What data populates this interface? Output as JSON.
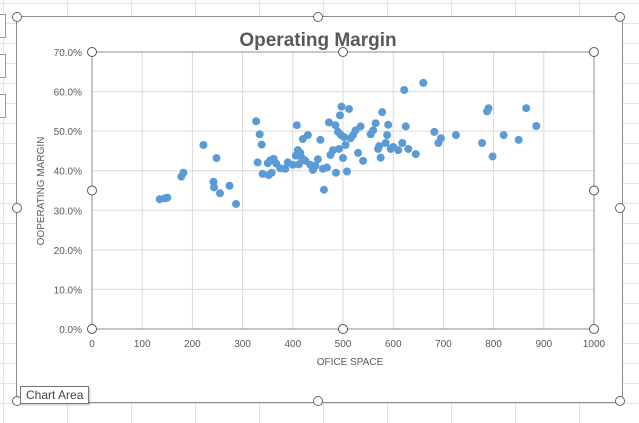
{
  "tooltip": "Chart Area",
  "colors": {
    "point": "#5b9bd5",
    "grid": "#d9d9d9",
    "text": "#595959",
    "title": "#595959"
  },
  "chart_data": {
    "type": "scatter",
    "title": "Operating Margin",
    "xlabel": "OFICE SPACE",
    "ylabel": "OOPERATING MARGIN",
    "xlim": [
      0,
      1000
    ],
    "ylim": [
      0,
      0.7
    ],
    "xticks": [
      0,
      100,
      200,
      300,
      400,
      500,
      600,
      700,
      800,
      900,
      1000
    ],
    "yticks": [
      0,
      0.1,
      0.2,
      0.3,
      0.4,
      0.5,
      0.6,
      0.7
    ],
    "xtick_labels": [
      "0",
      "100",
      "200",
      "300",
      "400",
      "500",
      "600",
      "700",
      "800",
      "900",
      "1000"
    ],
    "ytick_labels": [
      "0.0%",
      "10.0%",
      "20.0%",
      "30.0%",
      "40.0%",
      "50.0%",
      "60.0%",
      "70.0%"
    ],
    "grid": true,
    "legend": "none",
    "points": [
      [
        135,
        0.328
      ],
      [
        145,
        0.33
      ],
      [
        150,
        0.332
      ],
      [
        178,
        0.385
      ],
      [
        182,
        0.395
      ],
      [
        222,
        0.465
      ],
      [
        242,
        0.372
      ],
      [
        243,
        0.358
      ],
      [
        248,
        0.432
      ],
      [
        255,
        0.343
      ],
      [
        274,
        0.362
      ],
      [
        287,
        0.316
      ],
      [
        327,
        0.525
      ],
      [
        330,
        0.421
      ],
      [
        334,
        0.492
      ],
      [
        338,
        0.466
      ],
      [
        340,
        0.392
      ],
      [
        350,
        0.419
      ],
      [
        352,
        0.389
      ],
      [
        355,
        0.426
      ],
      [
        358,
        0.395
      ],
      [
        362,
        0.43
      ],
      [
        367,
        0.418
      ],
      [
        375,
        0.406
      ],
      [
        385,
        0.405
      ],
      [
        390,
        0.421
      ],
      [
        400,
        0.415
      ],
      [
        406,
        0.438
      ],
      [
        408,
        0.515
      ],
      [
        410,
        0.452
      ],
      [
        412,
        0.416
      ],
      [
        415,
        0.445
      ],
      [
        418,
        0.432
      ],
      [
        420,
        0.48
      ],
      [
        422,
        0.428
      ],
      [
        425,
        0.425
      ],
      [
        430,
        0.49
      ],
      [
        435,
        0.415
      ],
      [
        440,
        0.402
      ],
      [
        445,
        0.412
      ],
      [
        450,
        0.429
      ],
      [
        455,
        0.478
      ],
      [
        460,
        0.405
      ],
      [
        462,
        0.352
      ],
      [
        468,
        0.408
      ],
      [
        472,
        0.522
      ],
      [
        475,
        0.44
      ],
      [
        480,
        0.452
      ],
      [
        485,
        0.515
      ],
      [
        486,
        0.395
      ],
      [
        490,
        0.498
      ],
      [
        492,
        0.455
      ],
      [
        494,
        0.54
      ],
      [
        496,
        0.49
      ],
      [
        497,
        0.562
      ],
      [
        500,
        0.432
      ],
      [
        502,
        0.485
      ],
      [
        505,
        0.465
      ],
      [
        508,
        0.398
      ],
      [
        512,
        0.556
      ],
      [
        515,
        0.482
      ],
      [
        520,
        0.49
      ],
      [
        525,
        0.502
      ],
      [
        530,
        0.445
      ],
      [
        535,
        0.512
      ],
      [
        540,
        0.425
      ],
      [
        555,
        0.492
      ],
      [
        560,
        0.502
      ],
      [
        565,
        0.52
      ],
      [
        570,
        0.455
      ],
      [
        572,
        0.462
      ],
      [
        575,
        0.433
      ],
      [
        578,
        0.548
      ],
      [
        585,
        0.47
      ],
      [
        588,
        0.49
      ],
      [
        590,
        0.516
      ],
      [
        595,
        0.455
      ],
      [
        600,
        0.46
      ],
      [
        610,
        0.452
      ],
      [
        618,
        0.47
      ],
      [
        622,
        0.604
      ],
      [
        625,
        0.512
      ],
      [
        630,
        0.455
      ],
      [
        645,
        0.442
      ],
      [
        660,
        0.622
      ],
      [
        682,
        0.498
      ],
      [
        690,
        0.47
      ],
      [
        695,
        0.482
      ],
      [
        725,
        0.49
      ],
      [
        777,
        0.47
      ],
      [
        787,
        0.55
      ],
      [
        790,
        0.558
      ],
      [
        798,
        0.436
      ],
      [
        820,
        0.49
      ],
      [
        850,
        0.478
      ],
      [
        865,
        0.558
      ],
      [
        885,
        0.513
      ]
    ]
  }
}
